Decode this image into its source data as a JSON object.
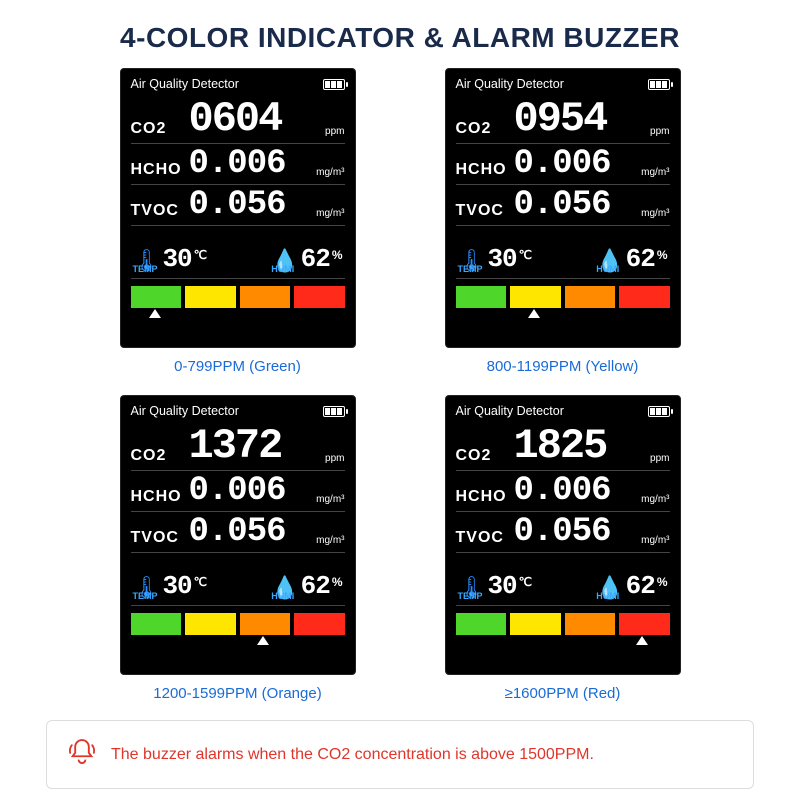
{
  "title": "4-COLOR INDICATOR & ALARM BUZZER",
  "panel_title": "Air Quality Detector",
  "labels": {
    "co2": "CO2",
    "hcho": "HCHO",
    "tvoc": "TVOC",
    "temp": "TEMP",
    "humi": "HUMI"
  },
  "units": {
    "ppm": "ppm",
    "mgm3": "mg/m³",
    "c": "℃",
    "pct": "%"
  },
  "common": {
    "hcho": "0.006",
    "tvoc": "0.056",
    "temp": "30",
    "humi": "62"
  },
  "bar_colors": [
    "#4fd62b",
    "#ffe600",
    "#ff8a00",
    "#ff2a1a"
  ],
  "caption_color": "#1a6bd6",
  "icon_color": "#2a8cff",
  "panels": [
    {
      "co2": "0604",
      "arrow_index": 0,
      "caption": "0-799PPM (Green)"
    },
    {
      "co2": "0954",
      "arrow_index": 1,
      "caption": "800-1199PPM (Yellow)"
    },
    {
      "co2": "1372",
      "arrow_index": 2,
      "caption": "1200-1599PPM (Orange)"
    },
    {
      "co2": "1825",
      "arrow_index": 3,
      "caption": "≥1600PPM  (Red)"
    }
  ],
  "footer_text": "The buzzer alarms when the CO2 concentration is above 1500PPM.",
  "footer_color": "#e0352b"
}
